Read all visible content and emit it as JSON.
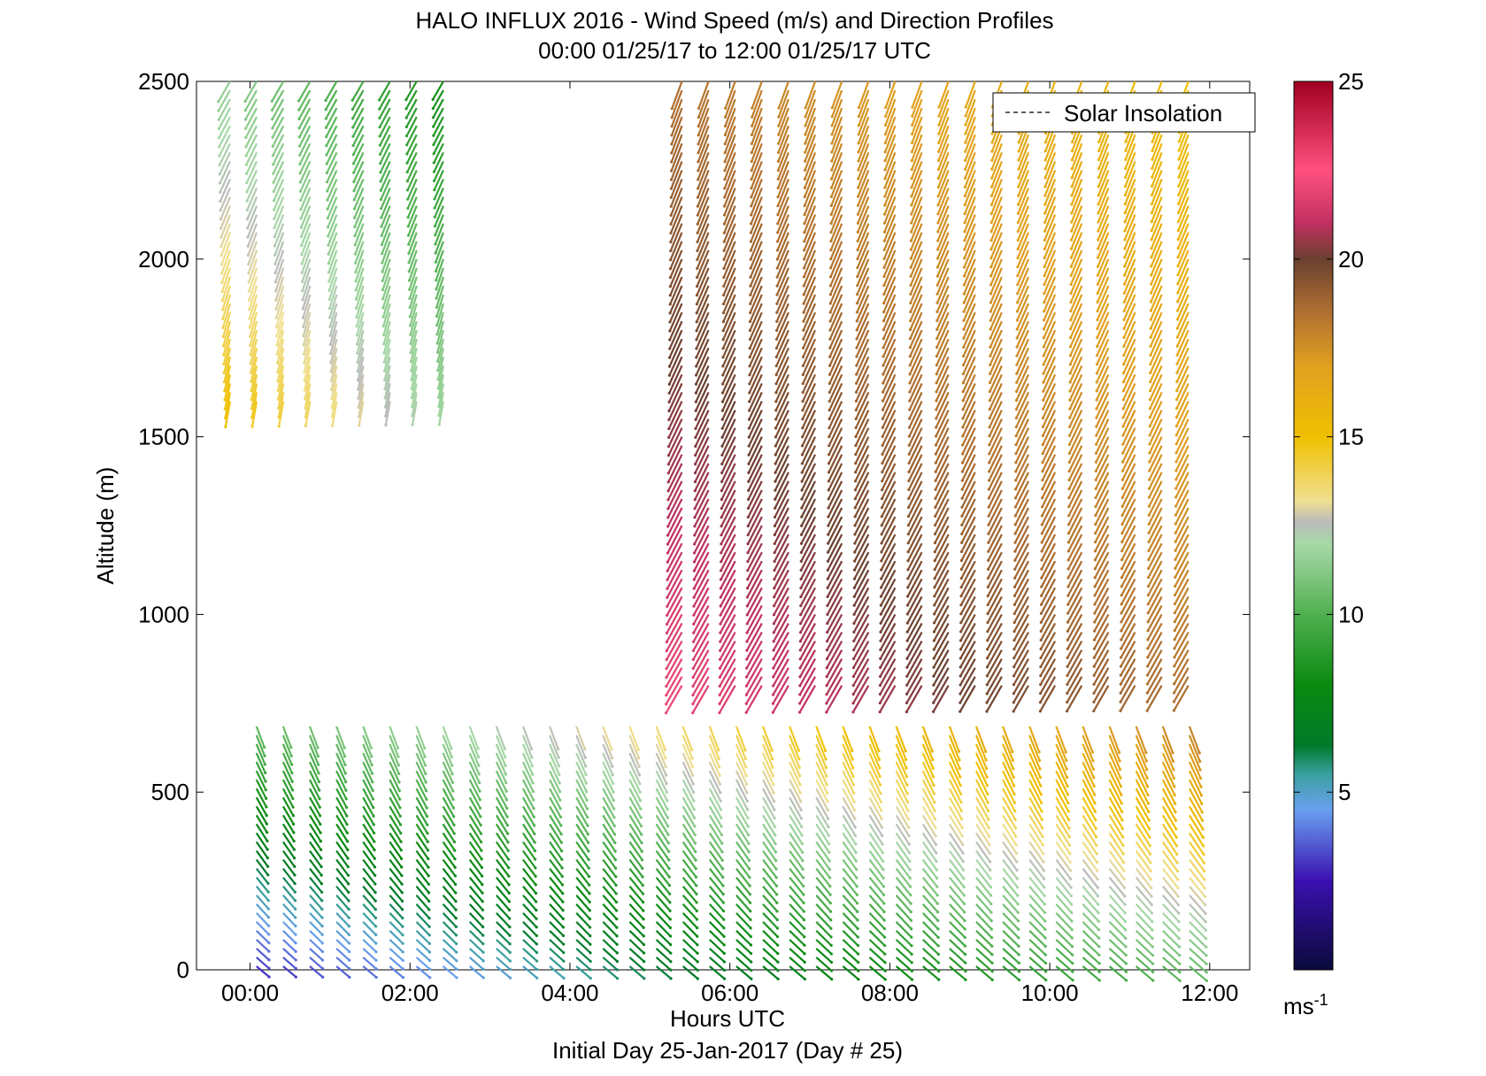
{
  "chart_data": {
    "type": "wind-barb-profile",
    "title": "HALO INFLUX 2016 - Wind Speed (m/s) and Direction Profiles",
    "subtitle": "00:00 01/25/17 to 12:00 01/25/17  UTC",
    "xlabel": "Hours UTC",
    "xlabel2": "Initial Day 25-Jan-2017 (Day # 25)",
    "ylabel": "Altitude (m)",
    "xlim": [
      -0.67,
      12.5
    ],
    "ylim": [
      0,
      2500
    ],
    "x_ticks": [
      0,
      2,
      4,
      6,
      8,
      10,
      12
    ],
    "x_tick_labels": [
      "00:00",
      "02:00",
      "04:00",
      "06:00",
      "08:00",
      "10:00",
      "12:00"
    ],
    "y_ticks": [
      0,
      500,
      1000,
      1500,
      2000,
      2500
    ],
    "y_tick_labels": [
      "0",
      "500",
      "1000",
      "1500",
      "2000",
      "2500"
    ],
    "legend": {
      "entries": [
        "Solar Insolation"
      ],
      "position": "top-right"
    },
    "colorbar": {
      "range": [
        0,
        25
      ],
      "ticks": [
        5,
        10,
        15,
        20,
        25
      ],
      "tick_labels": [
        "5",
        "10",
        "15",
        "20",
        "25"
      ],
      "unit_label": "ms",
      "unit_exponent": "-1",
      "stops": [
        {
          "value": 0,
          "color": "#0a0a3a"
        },
        {
          "value": 2.5,
          "color": "#3a10b0"
        },
        {
          "value": 4.5,
          "color": "#6aa0f0"
        },
        {
          "value": 5.5,
          "color": "#3aa0a0"
        },
        {
          "value": 6.3,
          "color": "#007a2a"
        },
        {
          "value": 8,
          "color": "#0a8a10"
        },
        {
          "value": 10,
          "color": "#50b050"
        },
        {
          "value": 12,
          "color": "#a8d8a8"
        },
        {
          "value": 12.6,
          "color": "#bbbbbb"
        },
        {
          "value": 13.2,
          "color": "#f0e090"
        },
        {
          "value": 15,
          "color": "#f0c000"
        },
        {
          "value": 17,
          "color": "#e0a020"
        },
        {
          "value": 18.5,
          "color": "#b07030"
        },
        {
          "value": 20,
          "color": "#6a4030"
        },
        {
          "value": 21,
          "color": "#c03060"
        },
        {
          "value": 22.5,
          "color": "#ff5080"
        },
        {
          "value": 25,
          "color": "#a00020"
        }
      ]
    },
    "series": [
      {
        "block": "surface-layer",
        "x_range": [
          0.08,
          11.8
        ],
        "z_range": [
          10,
          700
        ],
        "speed_start": 3,
        "speed_end": 18,
        "dir_deg_start": 320,
        "dir_deg_end": 290
      },
      {
        "block": "upper-left",
        "x_range": [
          -0.25,
          2.7
        ],
        "z_range": [
          1600,
          2500
        ],
        "speed_start": 15,
        "speed_end": 8,
        "dir_deg_start": 260,
        "dir_deg_end": 240
      },
      {
        "block": "upper-right",
        "x_range": [
          5.4,
          11.8
        ],
        "z_range": [
          800,
          2500
        ],
        "speed_start": 22,
        "speed_end": 15,
        "dir_deg_start": 240,
        "dir_deg_end": 250
      }
    ]
  }
}
